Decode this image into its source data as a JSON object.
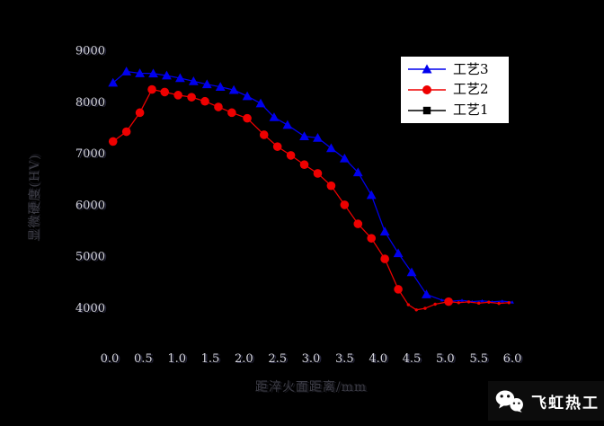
{
  "watermark": {
    "brand_text": "飞虹热工",
    "icon": "wechat-icon"
  },
  "chart_data": {
    "type": "line",
    "title": "",
    "background": "#000000",
    "grid": false,
    "x_axis": {
      "label": "距淬火面距离/mm",
      "min": 0.0,
      "max": 6.0,
      "ticks": [
        {
          "value": 0.0,
          "label": "0.0"
        },
        {
          "value": 0.5,
          "label": "0.5"
        },
        {
          "value": 1.0,
          "label": "1.0"
        },
        {
          "value": 1.5,
          "label": "1.5"
        },
        {
          "value": 2.0,
          "label": "2.0"
        },
        {
          "value": 2.5,
          "label": "2.5"
        },
        {
          "value": 3.0,
          "label": "3.0"
        },
        {
          "value": 3.5,
          "label": "3.5"
        },
        {
          "value": 4.0,
          "label": "4.0"
        },
        {
          "value": 4.5,
          "label": "4.5"
        },
        {
          "value": 5.0,
          "label": "5.0"
        },
        {
          "value": 5.5,
          "label": "5.5"
        },
        {
          "value": 6.0,
          "label": "6.0"
        }
      ]
    },
    "y_axis": {
      "label": "显微硬度(HV)",
      "min": 4000,
      "max": 9000,
      "ticks": [
        {
          "value": 9000,
          "label": "9000"
        },
        {
          "value": 8000,
          "label": "8000"
        },
        {
          "value": 7000,
          "label": "7000"
        },
        {
          "value": 6000,
          "label": "6000"
        },
        {
          "value": 5000,
          "label": "5000"
        },
        {
          "value": 4000,
          "label": "4000"
        }
      ]
    },
    "legend": {
      "position": "top-right",
      "entries": [
        {
          "label": "工艺3",
          "color": "#0000ee",
          "marker": "triangle"
        },
        {
          "label": "工艺2",
          "color": "#ee0000",
          "marker": "circle"
        },
        {
          "label": "工艺1",
          "color": "#000000",
          "marker": "square"
        }
      ]
    },
    "series": [
      {
        "name": "工艺3",
        "color": "#0000ee",
        "marker": "triangle",
        "points": [
          [
            0.05,
            8370,
            1
          ],
          [
            0.25,
            8590,
            1
          ],
          [
            0.45,
            8555,
            1
          ],
          [
            0.65,
            8550,
            1
          ],
          [
            0.85,
            8510,
            1
          ],
          [
            1.05,
            8460,
            1
          ],
          [
            1.25,
            8400,
            1
          ],
          [
            1.45,
            8340,
            1
          ],
          [
            1.65,
            8290,
            1
          ],
          [
            1.85,
            8230,
            1
          ],
          [
            2.05,
            8110,
            1
          ],
          [
            2.25,
            7970,
            1
          ],
          [
            2.45,
            7700,
            1
          ],
          [
            2.65,
            7550,
            1
          ],
          [
            2.9,
            7330,
            1
          ],
          [
            3.1,
            7300,
            1
          ],
          [
            3.3,
            7100,
            1
          ],
          [
            3.5,
            6900,
            1
          ],
          [
            3.7,
            6630,
            1
          ],
          [
            3.9,
            6190,
            1
          ],
          [
            4.1,
            5480,
            1
          ],
          [
            4.3,
            5060,
            1
          ],
          [
            4.5,
            4690,
            1
          ],
          [
            4.72,
            4260,
            1
          ],
          [
            4.95,
            4150,
            0
          ],
          [
            5.1,
            4130,
            0
          ],
          [
            5.25,
            4145,
            0
          ],
          [
            5.4,
            4120,
            0
          ],
          [
            5.55,
            4135,
            0
          ],
          [
            5.7,
            4115,
            0
          ],
          [
            5.85,
            4130,
            0
          ],
          [
            6.0,
            4110,
            0
          ]
        ]
      },
      {
        "name": "工艺2",
        "color": "#ee0000",
        "marker": "circle",
        "points": [
          [
            0.05,
            7230,
            1
          ],
          [
            0.25,
            7420,
            1
          ],
          [
            0.45,
            7790,
            1
          ],
          [
            0.63,
            8240,
            1
          ],
          [
            0.82,
            8190,
            1
          ],
          [
            1.02,
            8130,
            1
          ],
          [
            1.22,
            8090,
            1
          ],
          [
            1.42,
            8010,
            1
          ],
          [
            1.62,
            7900,
            1
          ],
          [
            1.82,
            7790,
            1
          ],
          [
            2.05,
            7680,
            1
          ],
          [
            2.3,
            7360,
            1
          ],
          [
            2.5,
            7130,
            1
          ],
          [
            2.7,
            6960,
            1
          ],
          [
            2.9,
            6780,
            1
          ],
          [
            3.1,
            6610,
            1
          ],
          [
            3.3,
            6370,
            1
          ],
          [
            3.5,
            6000,
            1
          ],
          [
            3.7,
            5630,
            1
          ],
          [
            3.9,
            5350,
            1
          ],
          [
            4.1,
            4950,
            1
          ],
          [
            4.3,
            4360,
            1
          ],
          [
            4.45,
            4060,
            0
          ],
          [
            4.57,
            3960,
            0
          ],
          [
            4.7,
            3990,
            0
          ],
          [
            4.85,
            4070,
            0
          ],
          [
            5.05,
            4120,
            1
          ],
          [
            5.2,
            4100,
            0
          ],
          [
            5.35,
            4115,
            0
          ],
          [
            5.5,
            4090,
            0
          ],
          [
            5.65,
            4110,
            0
          ],
          [
            5.8,
            4085,
            0
          ],
          [
            5.95,
            4100,
            0
          ]
        ]
      },
      {
        "name": "工艺1",
        "color": "#000000",
        "marker": "square",
        "points": [],
        "note": "listed in legend but not visible against black background"
      }
    ]
  }
}
